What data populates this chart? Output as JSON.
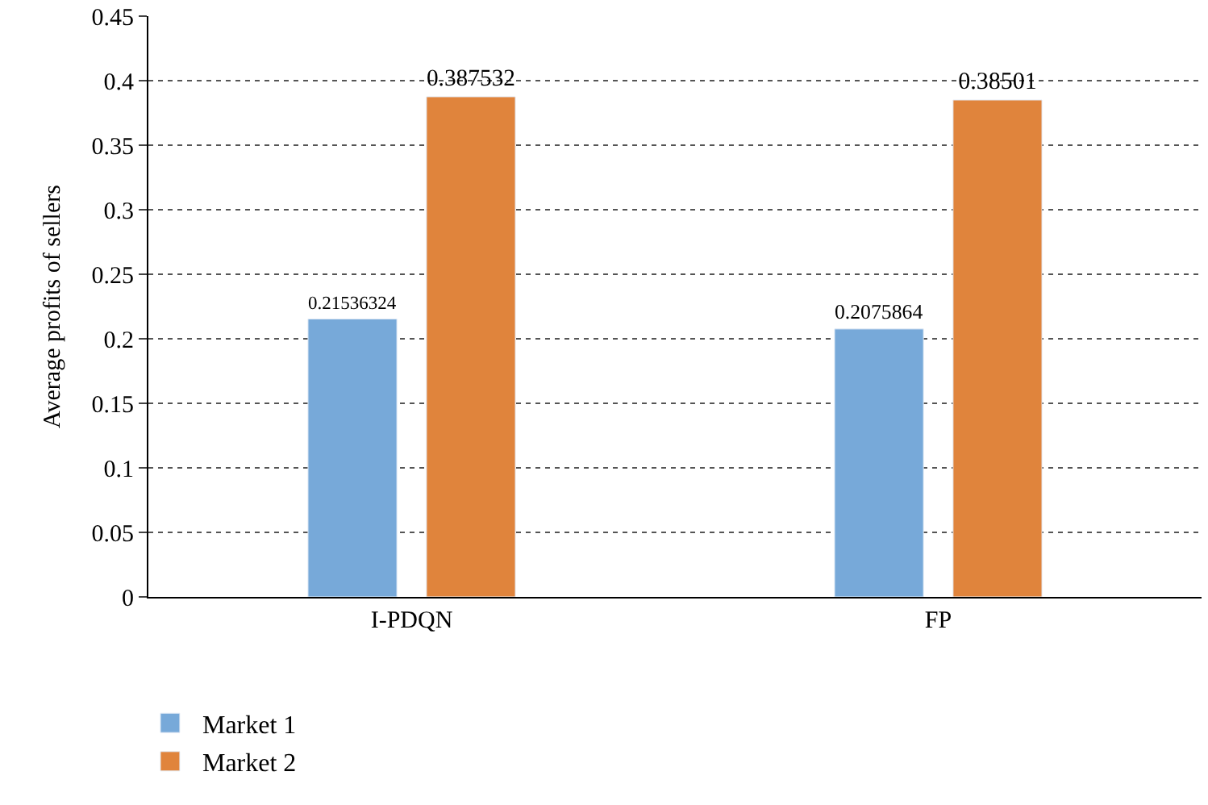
{
  "chart_data": {
    "type": "bar",
    "ylabel": "Average profits of sellers",
    "categories": [
      "I-PDQN",
      "FP"
    ],
    "series": [
      {
        "name": "Market 1",
        "color": "#77a9d9",
        "values": [
          0.21536324,
          0.2075864
        ]
      },
      {
        "name": "Market 2",
        "color": "#e0843c",
        "values": [
          0.387532,
          0.38501
        ]
      }
    ],
    "ylim": [
      0,
      0.45
    ],
    "yticks": [
      0,
      0.05,
      0.1,
      0.15,
      0.2,
      0.25,
      0.3,
      0.35,
      0.4,
      0.45
    ],
    "grid": "y",
    "legend": "bottom left",
    "data_labels": true
  }
}
